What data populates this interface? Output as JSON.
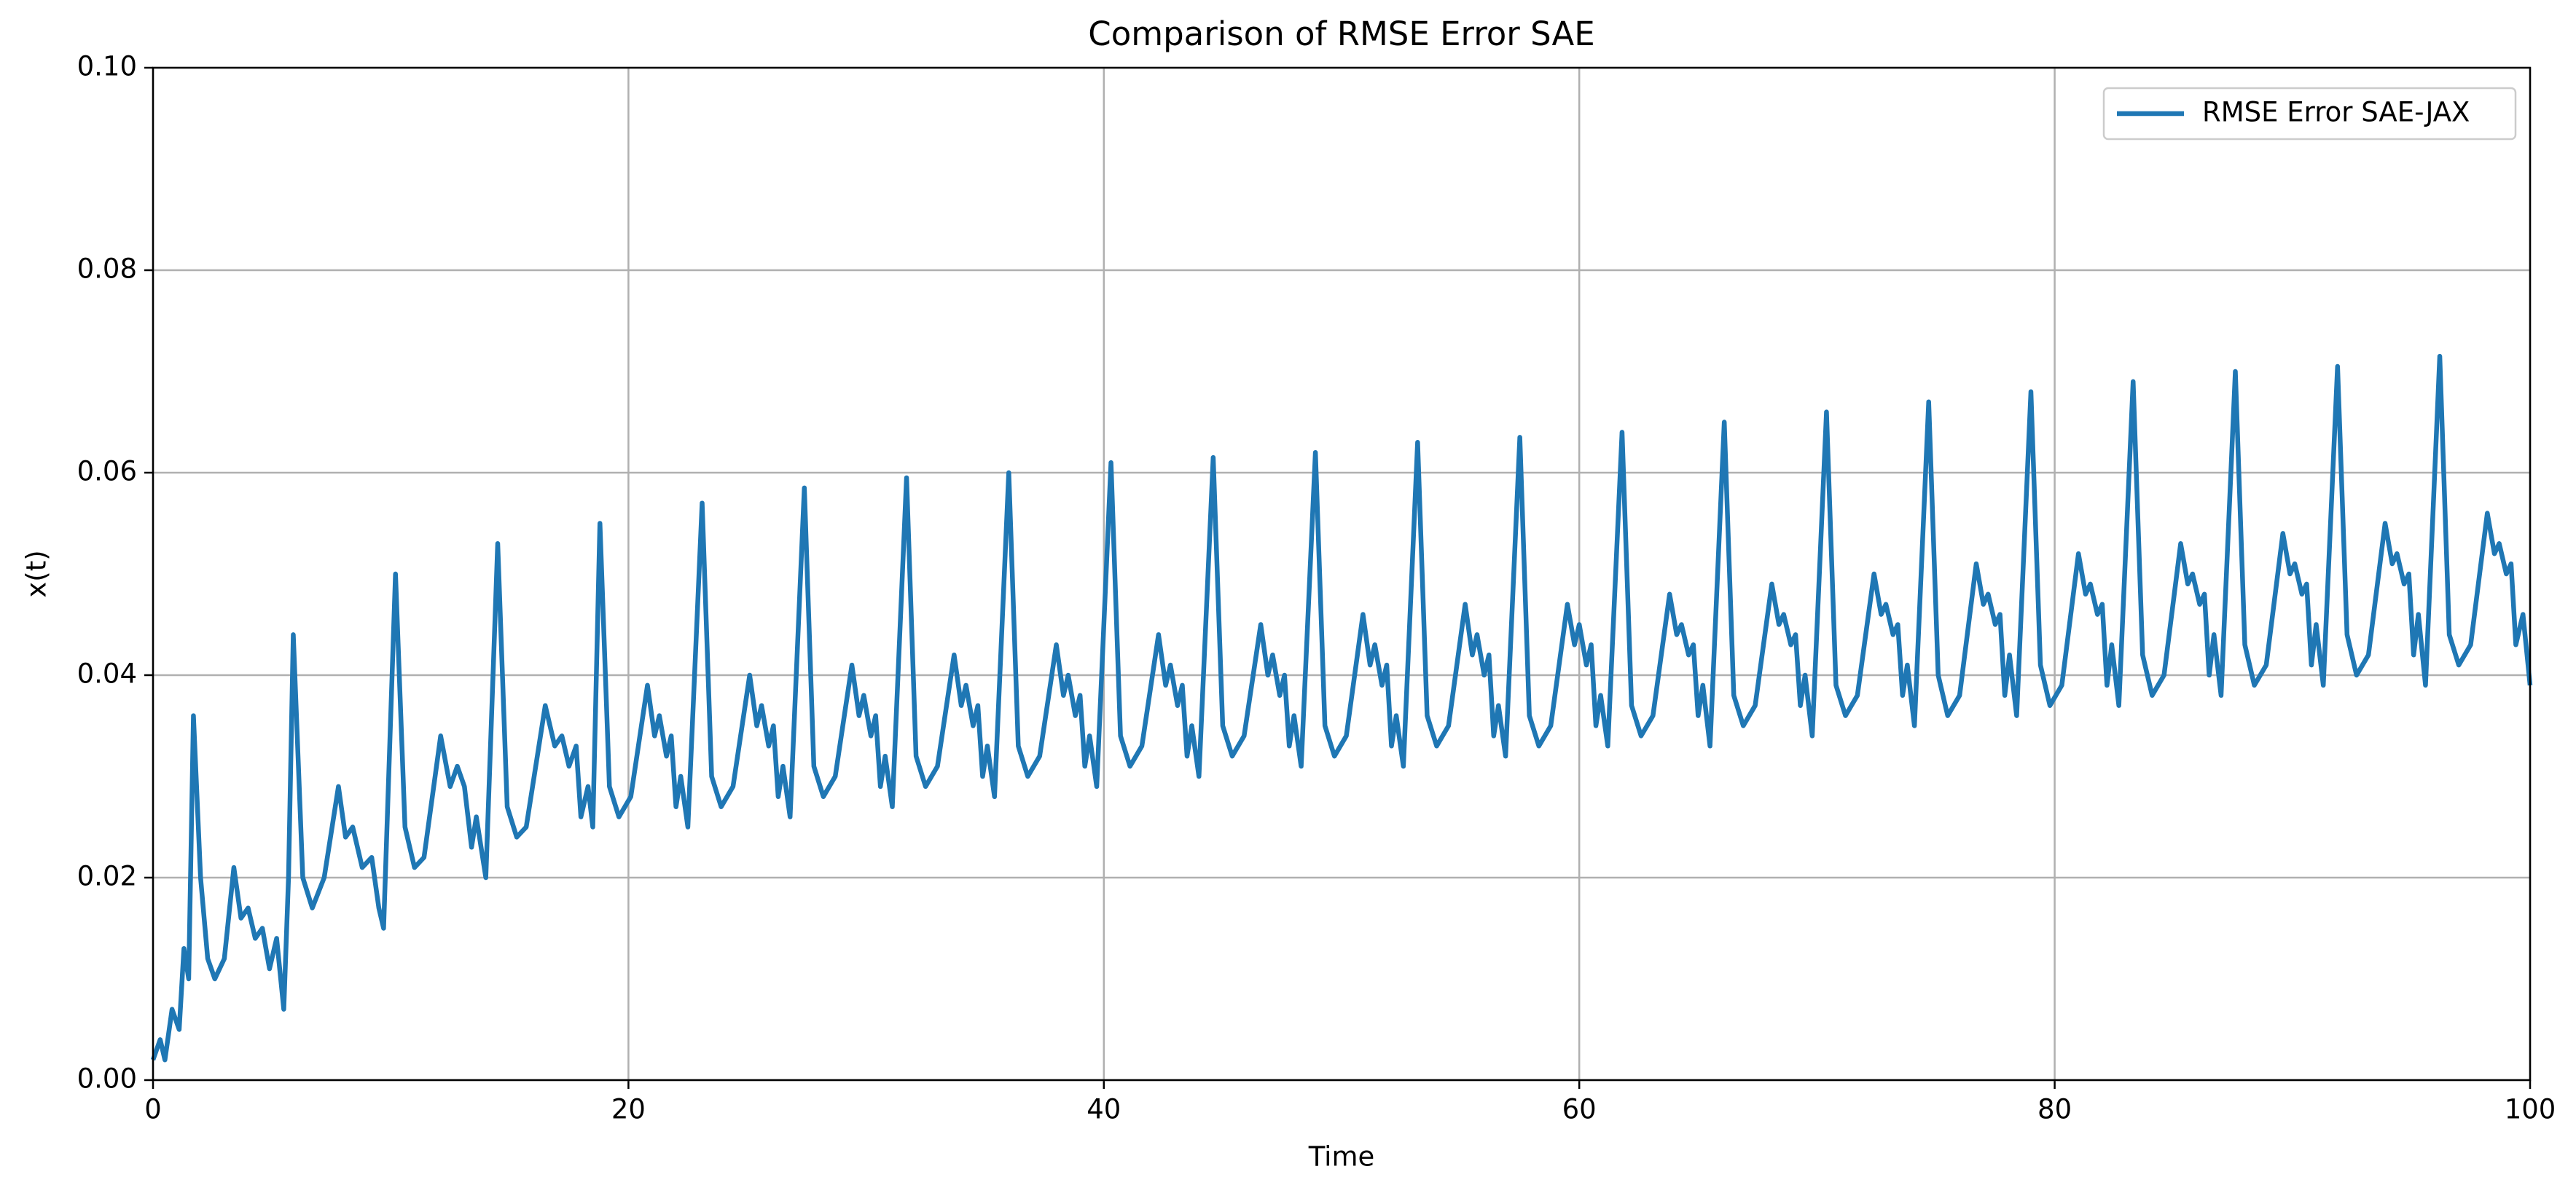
{
  "chart_data": {
    "type": "line",
    "title": "Comparison of RMSE Error SAE",
    "xlabel": "Time",
    "ylabel": "x(t)",
    "xlim": [
      0,
      100
    ],
    "ylim": [
      0,
      0.1
    ],
    "xticks": [
      0,
      20,
      40,
      60,
      80,
      100
    ],
    "yticks": [
      {
        "value": 0,
        "label": "0.00"
      },
      {
        "value": 0.02,
        "label": "0.02"
      },
      {
        "value": 0.04,
        "label": "0.04"
      },
      {
        "value": 0.06,
        "label": "0.06"
      },
      {
        "value": 0.08,
        "label": "0.08"
      },
      {
        "value": 0.1,
        "label": "0.10"
      }
    ],
    "grid": true,
    "legend": "upper right",
    "x": [
      0,
      0.3,
      0.5,
      0.8,
      1.1,
      1.3,
      1.5,
      1.7,
      2.0,
      2.3,
      2.6,
      3.0,
      3.4,
      3.7,
      4.0,
      4.3,
      4.6,
      4.9,
      5.2,
      5.5,
      5.7,
      5.9,
      6.3,
      6.7,
      7.2,
      7.8,
      8.1,
      8.4,
      8.8,
      9.2,
      9.5,
      9.7,
      10.2,
      10.6,
      11.0,
      11.4,
      12.1,
      12.5,
      12.8,
      13.1,
      13.4,
      13.6,
      14.0,
      14.5,
      14.9,
      15.3,
      15.7,
      16.5,
      16.9,
      17.2,
      17.5,
      17.8,
      18.0,
      18.3,
      18.5,
      18.8,
      19.2,
      19.6,
      20.1,
      20.8,
      21.1,
      21.3,
      21.6,
      21.8,
      22.0,
      22.2,
      22.5,
      23.1,
      23.5,
      23.9,
      24.4,
      25.1,
      25.4,
      25.6,
      25.9,
      26.1,
      26.3,
      26.5,
      26.8,
      27.4,
      27.8,
      28.2,
      28.7,
      29.4,
      29.7,
      29.9,
      30.2,
      30.4,
      30.6,
      30.8,
      31.1,
      31.7,
      32.1,
      32.5,
      33.0,
      33.7,
      34.0,
      34.2,
      34.5,
      34.7,
      34.9,
      35.1,
      35.4,
      36.0,
      36.4,
      36.8,
      37.3,
      38.0,
      38.3,
      38.5,
      38.8,
      39.0,
      39.2,
      39.4,
      39.7,
      40.3,
      40.7,
      41.1,
      41.6,
      42.3,
      42.6,
      42.8,
      43.1,
      43.3,
      43.5,
      43.7,
      44.0,
      44.6,
      45.0,
      45.4,
      45.9,
      46.6,
      46.9,
      47.1,
      47.4,
      47.6,
      47.8,
      48.0,
      48.3,
      48.9,
      49.3,
      49.7,
      50.2,
      50.9,
      51.2,
      51.4,
      51.7,
      51.9,
      52.1,
      52.3,
      52.6,
      53.2,
      53.6,
      54.0,
      54.5,
      55.2,
      55.5,
      55.7,
      56.0,
      56.2,
      56.4,
      56.6,
      56.9,
      57.5,
      57.9,
      58.3,
      58.8,
      59.5,
      59.8,
      60.0,
      60.3,
      60.5,
      60.7,
      60.9,
      61.2,
      61.8,
      62.2,
      62.6,
      63.1,
      63.8,
      64.1,
      64.3,
      64.6,
      64.8,
      65.0,
      65.2,
      65.5,
      66.1,
      66.5,
      66.9,
      67.4,
      68.1,
      68.4,
      68.6,
      68.9,
      69.1,
      69.3,
      69.5,
      69.8,
      70.4,
      70.8,
      71.2,
      71.7,
      72.4,
      72.7,
      72.9,
      73.2,
      73.4,
      73.6,
      73.8,
      74.1,
      74.7,
      75.1,
      75.5,
      76.0,
      76.7,
      77.0,
      77.2,
      77.5,
      77.7,
      77.9,
      78.1,
      78.4,
      79.0,
      79.4,
      79.8,
      80.3,
      81.0,
      81.3,
      81.5,
      81.8,
      82.0,
      82.2,
      82.4,
      82.7,
      83.3,
      83.7,
      84.1,
      84.6,
      85.3,
      85.6,
      85.8,
      86.1,
      86.3,
      86.5,
      86.7,
      87.0,
      87.6,
      88.0,
      88.4,
      88.9,
      89.6,
      89.9,
      90.1,
      90.4,
      90.6,
      90.8,
      91.0,
      91.3,
      91.9,
      92.3,
      92.7,
      93.2,
      93.9,
      94.2,
      94.4,
      94.7,
      94.9,
      95.1,
      95.3,
      95.6,
      96.2,
      96.6,
      97.0,
      97.5,
      98.2,
      98.5,
      98.7,
      99.0,
      99.2,
      99.4,
      99.7,
      100
    ],
    "series": [
      {
        "name": "RMSE Error SAE-JAX",
        "color": "#1f77b4",
        "values": [
          0.002,
          0.004,
          0.002,
          0.007,
          0.005,
          0.013,
          0.01,
          0.036,
          0.02,
          0.012,
          0.01,
          0.012,
          0.021,
          0.016,
          0.017,
          0.014,
          0.015,
          0.011,
          0.014,
          0.007,
          0.02,
          0.044,
          0.02,
          0.017,
          0.02,
          0.029,
          0.024,
          0.025,
          0.021,
          0.022,
          0.017,
          0.015,
          0.05,
          0.025,
          0.021,
          0.022,
          0.034,
          0.029,
          0.031,
          0.029,
          0.023,
          0.026,
          0.02,
          0.053,
          0.027,
          0.024,
          0.025,
          0.037,
          0.033,
          0.034,
          0.031,
          0.033,
          0.026,
          0.029,
          0.025,
          0.055,
          0.029,
          0.026,
          0.028,
          0.039,
          0.034,
          0.036,
          0.032,
          0.034,
          0.027,
          0.03,
          0.025,
          0.057,
          0.03,
          0.027,
          0.029,
          0.04,
          0.035,
          0.037,
          0.033,
          0.035,
          0.028,
          0.031,
          0.026,
          0.0585,
          0.031,
          0.028,
          0.03,
          0.041,
          0.036,
          0.038,
          0.034,
          0.036,
          0.029,
          0.032,
          0.027,
          0.0595,
          0.032,
          0.029,
          0.031,
          0.042,
          0.037,
          0.039,
          0.035,
          0.037,
          0.03,
          0.033,
          0.028,
          0.06,
          0.033,
          0.03,
          0.032,
          0.043,
          0.038,
          0.04,
          0.036,
          0.038,
          0.031,
          0.034,
          0.029,
          0.061,
          0.034,
          0.031,
          0.033,
          0.044,
          0.039,
          0.041,
          0.037,
          0.039,
          0.032,
          0.035,
          0.03,
          0.0615,
          0.035,
          0.032,
          0.034,
          0.045,
          0.04,
          0.042,
          0.038,
          0.04,
          0.033,
          0.036,
          0.031,
          0.062,
          0.035,
          0.032,
          0.034,
          0.046,
          0.041,
          0.043,
          0.039,
          0.041,
          0.033,
          0.036,
          0.031,
          0.063,
          0.036,
          0.033,
          0.035,
          0.047,
          0.042,
          0.044,
          0.04,
          0.042,
          0.034,
          0.037,
          0.032,
          0.0635,
          0.036,
          0.033,
          0.035,
          0.047,
          0.043,
          0.045,
          0.041,
          0.043,
          0.035,
          0.038,
          0.033,
          0.064,
          0.037,
          0.034,
          0.036,
          0.048,
          0.044,
          0.045,
          0.042,
          0.043,
          0.036,
          0.039,
          0.033,
          0.065,
          0.038,
          0.035,
          0.037,
          0.049,
          0.045,
          0.046,
          0.043,
          0.044,
          0.037,
          0.04,
          0.034,
          0.066,
          0.039,
          0.036,
          0.038,
          0.05,
          0.046,
          0.047,
          0.044,
          0.045,
          0.038,
          0.041,
          0.035,
          0.067,
          0.04,
          0.036,
          0.038,
          0.051,
          0.047,
          0.048,
          0.045,
          0.046,
          0.038,
          0.042,
          0.036,
          0.068,
          0.041,
          0.037,
          0.039,
          0.052,
          0.048,
          0.049,
          0.046,
          0.047,
          0.039,
          0.043,
          0.037,
          0.069,
          0.042,
          0.038,
          0.04,
          0.053,
          0.049,
          0.05,
          0.047,
          0.048,
          0.04,
          0.044,
          0.038,
          0.07,
          0.043,
          0.039,
          0.041,
          0.054,
          0.05,
          0.051,
          0.048,
          0.049,
          0.041,
          0.045,
          0.039,
          0.0705,
          0.044,
          0.04,
          0.042,
          0.055,
          0.051,
          0.052,
          0.049,
          0.05,
          0.042,
          0.046,
          0.039,
          0.0715,
          0.044,
          0.041,
          0.043,
          0.056,
          0.052,
          0.053,
          0.05,
          0.051,
          0.043,
          0.046,
          0.039
        ]
      }
    ]
  }
}
